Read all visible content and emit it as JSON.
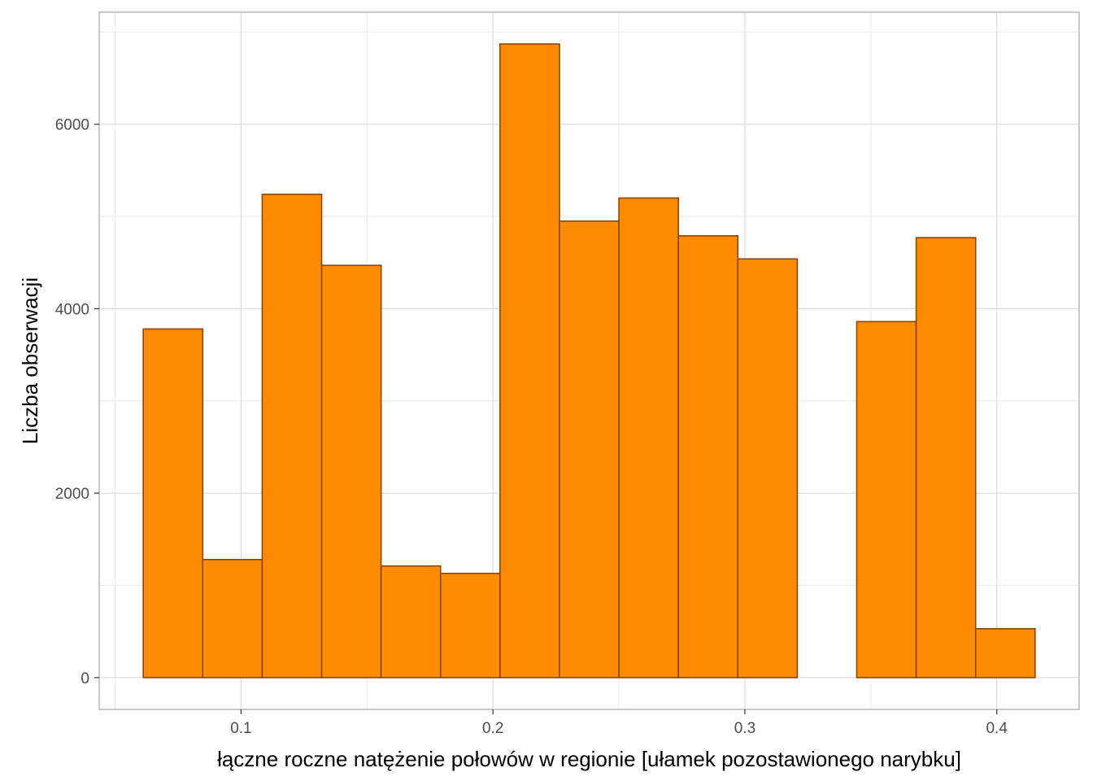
{
  "chart_data": {
    "type": "bar",
    "subtype": "histogram",
    "title": "",
    "xlabel": "łączne roczne natężenie połowów w regionie [ułamek pozostawionego narybku]",
    "ylabel": "Liczba obserwacji",
    "bin_edges": [
      0.0612,
      0.0848,
      0.1084,
      0.132,
      0.1556,
      0.1792,
      0.2028,
      0.2264,
      0.25,
      0.2736,
      0.2972,
      0.3208,
      0.3444,
      0.368,
      0.3916,
      0.4152
    ],
    "values": [
      3780,
      1280,
      5240,
      4470,
      1210,
      1130,
      6870,
      4950,
      5200,
      4790,
      4540,
      0,
      3860,
      4770,
      530
    ],
    "xlim": [
      0.0437,
      0.4327
    ],
    "ylim": [
      -345,
      7215
    ],
    "x_ticks": [
      0.1,
      0.2,
      0.3,
      0.4
    ],
    "x_tick_labels": [
      "0.1",
      "0.2",
      "0.3",
      "0.4"
    ],
    "y_ticks": [
      0,
      2000,
      4000,
      6000
    ],
    "y_tick_labels": [
      "0",
      "2000",
      "4000",
      "6000"
    ],
    "grid": true,
    "legend": "none",
    "colors": {
      "bar_fill": "#ff8c00",
      "bar_stroke": "#8b4500",
      "grid_major": "#dcdcdc",
      "grid_minor": "#ebebeb",
      "panel_border": "#b3b3b3"
    }
  }
}
